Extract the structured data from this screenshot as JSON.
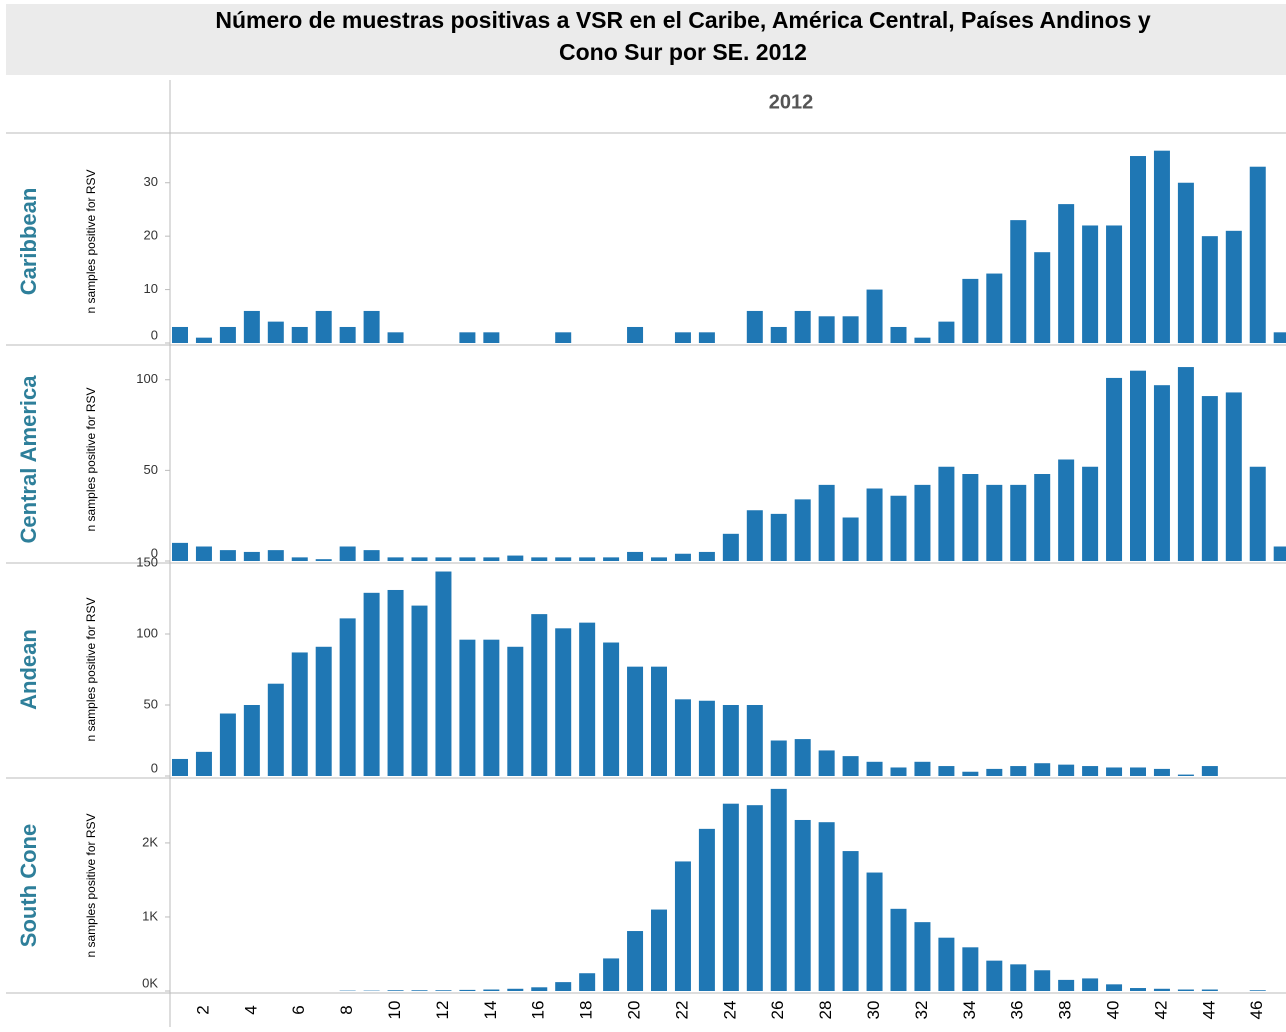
{
  "title": "Número de muestras positivas a VSR en el Caribe, América Central, Países Andinos y Cono Sur por SE. 2012",
  "column_header": "2012",
  "chart_data": [
    {
      "type": "bar",
      "title": "Caribbean",
      "y_label": "n samples positive for RSV",
      "color": "#1f77b4",
      "values": [
        3,
        1,
        3,
        6,
        4,
        3,
        6,
        3,
        6,
        2,
        0,
        0,
        2,
        2,
        0,
        0,
        2,
        0,
        0,
        3,
        0,
        2,
        2,
        0,
        6,
        3,
        6,
        5,
        5,
        10,
        3,
        1,
        4,
        12,
        13,
        23,
        17,
        26,
        22,
        22,
        35,
        36,
        30,
        20,
        21,
        33,
        2
      ],
      "ylim": [
        0,
        38
      ],
      "yticks": [
        0,
        10,
        20,
        30
      ]
    },
    {
      "type": "bar",
      "title": "Central America",
      "y_label": "n samples positive for RSV",
      "color": "#1f77b4",
      "values": [
        10,
        8,
        6,
        5,
        6,
        2,
        1,
        8,
        6,
        2,
        2,
        2,
        2,
        2,
        3,
        2,
        2,
        2,
        2,
        5,
        2,
        4,
        5,
        15,
        28,
        26,
        34,
        42,
        24,
        40,
        36,
        42,
        52,
        48,
        42,
        42,
        48,
        56,
        52,
        101,
        105,
        97,
        107,
        91,
        93,
        52,
        8
      ],
      "ylim": [
        0,
        112
      ],
      "yticks": [
        0,
        50,
        100
      ]
    },
    {
      "type": "bar",
      "title": "Andean",
      "y_label": "n samples positive for RSV",
      "color": "#1f77b4",
      "values": [
        12,
        17,
        44,
        50,
        65,
        87,
        91,
        111,
        129,
        131,
        120,
        144,
        96,
        96,
        91,
        114,
        104,
        108,
        94,
        77,
        77,
        54,
        53,
        50,
        50,
        25,
        26,
        18,
        14,
        10,
        6,
        10,
        7,
        3,
        5,
        7,
        9,
        8,
        7,
        6,
        6,
        5,
        1,
        7,
        0,
        0,
        0
      ],
      "ylim": [
        0,
        150
      ],
      "yticks": [
        0,
        50,
        100,
        150
      ]
    },
    {
      "type": "bar",
      "title": "South Cone",
      "y_label": "n samples positive for RSV",
      "color": "#1f77b4",
      "categories": [
        null,
        2,
        null,
        4,
        null,
        6,
        null,
        8,
        null,
        10,
        null,
        12,
        null,
        14,
        null,
        16,
        null,
        18,
        null,
        20,
        null,
        22,
        null,
        24,
        null,
        26,
        null,
        28,
        null,
        30,
        null,
        32,
        null,
        34,
        null,
        36,
        null,
        38,
        null,
        40,
        null,
        42,
        null,
        44,
        null,
        46,
        null
      ],
      "values": [
        0,
        0,
        0,
        0,
        0,
        0,
        0,
        5,
        5,
        10,
        10,
        10,
        15,
        20,
        30,
        50,
        120,
        240,
        440,
        810,
        1100,
        1750,
        2190,
        2530,
        2510,
        2730,
        2310,
        2280,
        1890,
        1600,
        1110,
        930,
        720,
        590,
        410,
        360,
        280,
        150,
        170,
        90,
        40,
        30,
        20,
        20,
        0,
        10,
        0
      ],
      "ylim": [
        0,
        2850
      ],
      "yticks": [
        {
          "value": 0,
          "label": "0K"
        },
        {
          "value": 1000,
          "label": "1K"
        },
        {
          "value": 2000,
          "label": "2K"
        }
      ]
    }
  ]
}
